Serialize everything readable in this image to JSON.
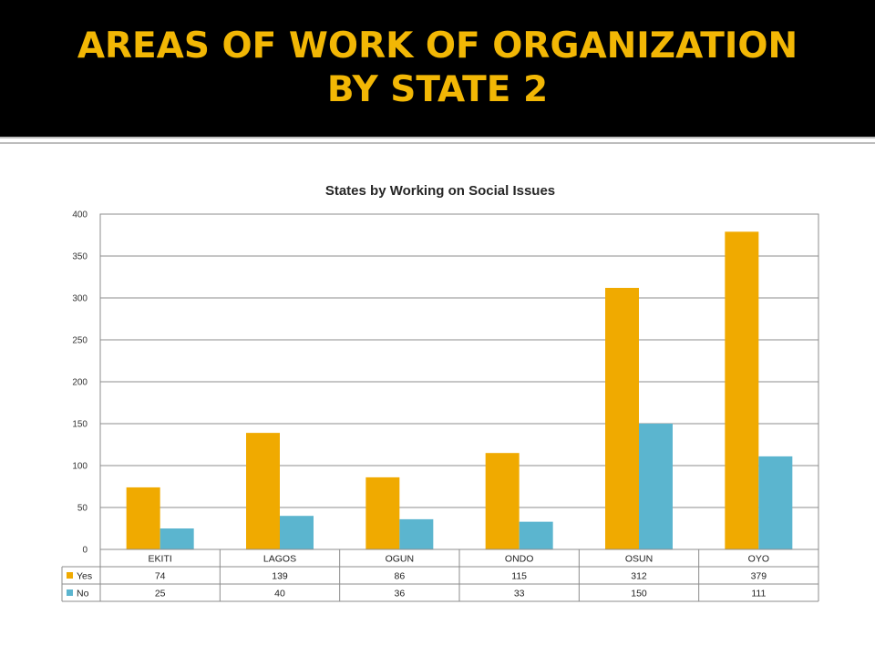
{
  "slide": {
    "title": "AREAS OF WORK OF ORGANIZATION BY STATE 2"
  },
  "colors": {
    "banner": "#000000",
    "title_text": "#f2b705",
    "yes": "#f0aa00",
    "no": "#5bb5cf",
    "grid": "#8c8c8c"
  },
  "chart_data": {
    "type": "bar",
    "title": "States by Working on Social Issues",
    "xlabel": "",
    "ylabel": "",
    "categories": [
      "EKITI",
      "LAGOS",
      "OGUN",
      "ONDO",
      "OSUN",
      "OYO"
    ],
    "series": [
      {
        "name": "Yes",
        "color": "#f0aa00",
        "values": [
          74,
          139,
          86,
          115,
          312,
          379
        ]
      },
      {
        "name": "No",
        "color": "#5bb5cf",
        "values": [
          25,
          40,
          36,
          33,
          150,
          111
        ]
      }
    ],
    "ylim": [
      0,
      400
    ],
    "yticks": [
      "0",
      "50",
      "100",
      "150",
      "200",
      "250",
      "300",
      "350",
      "400"
    ],
    "grid": true,
    "legend": "data-table"
  }
}
